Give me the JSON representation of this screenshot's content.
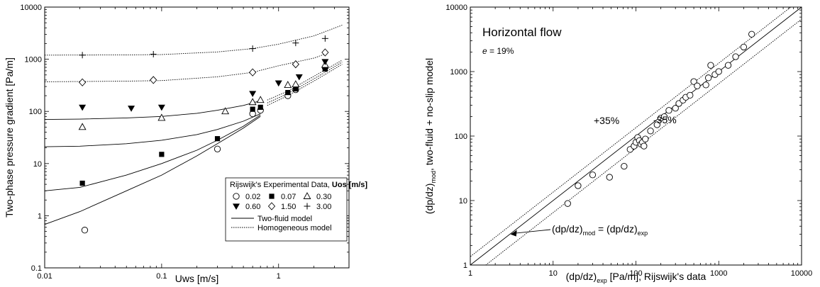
{
  "chart_data": [
    {
      "type": "scatter",
      "xscale": "log",
      "yscale": "log",
      "xlim": [
        0.01,
        4
      ],
      "ylim": [
        0.1,
        10000
      ],
      "xlabel": "Uws [m/s]",
      "ylabel": "Two-phase pressure gradient [Pa/m]",
      "xticks": [
        {
          "v": 0.01,
          "label": "0.01"
        },
        {
          "v": 0.1,
          "label": "0.1"
        },
        {
          "v": 1,
          "label": "1"
        }
      ],
      "yticks": [
        {
          "v": 0.1,
          "label": "0.1"
        },
        {
          "v": 1,
          "label": "1"
        },
        {
          "v": 10,
          "label": "10"
        },
        {
          "v": 100,
          "label": "100"
        },
        {
          "v": 1000,
          "label": "1000"
        },
        {
          "v": 10000,
          "label": "10000"
        }
      ],
      "legend": {
        "title": "Rijswijk's Experimental Data,",
        "title_bold": "Uos [m/s]",
        "position": "bottom-right",
        "line_entries": [
          {
            "label": "Two-fluid model",
            "style": "solid"
          },
          {
            "label": "Homogeneous model",
            "style": "dotted"
          }
        ]
      },
      "series": [
        {
          "name": "0.02",
          "marker": "open-circle",
          "points": [
            [
              0.022,
              0.53
            ],
            [
              0.3,
              19
            ],
            [
              0.6,
              90
            ],
            [
              0.7,
              105
            ],
            [
              1.2,
              200
            ],
            [
              1.4,
              260
            ],
            [
              2.5,
              700
            ]
          ]
        },
        {
          "name": "0.07",
          "marker": "filled-square",
          "points": [
            [
              0.021,
              4.2
            ],
            [
              0.1,
              15
            ],
            [
              0.3,
              30
            ],
            [
              0.6,
              110
            ],
            [
              0.7,
              120
            ],
            [
              1.2,
              230
            ],
            [
              1.4,
              270
            ],
            [
              2.5,
              650
            ]
          ]
        },
        {
          "name": "0.30",
          "marker": "open-triangle",
          "points": [
            [
              0.021,
              50
            ],
            [
              0.1,
              75
            ],
            [
              0.35,
              100
            ],
            [
              0.6,
              150
            ],
            [
              0.7,
              165
            ],
            [
              1.2,
              320
            ],
            [
              1.4,
              330
            ],
            [
              2.5,
              780
            ]
          ]
        },
        {
          "name": "0.60",
          "marker": "filled-triangle-down",
          "points": [
            [
              0.021,
              120
            ],
            [
              0.055,
              115
            ],
            [
              0.1,
              120
            ],
            [
              0.6,
              220
            ],
            [
              1.0,
              350
            ],
            [
              1.5,
              460
            ],
            [
              2.5,
              900
            ]
          ]
        },
        {
          "name": "1.50",
          "marker": "open-diamond",
          "points": [
            [
              0.021,
              360
            ],
            [
              0.085,
              400
            ],
            [
              0.6,
              560
            ],
            [
              1.4,
              800
            ],
            [
              2.5,
              1350
            ]
          ]
        },
        {
          "name": "3.00",
          "marker": "plus",
          "points": [
            [
              0.021,
              1200
            ],
            [
              0.085,
              1250
            ],
            [
              0.6,
              1600
            ],
            [
              1.4,
              2050
            ],
            [
              2.5,
              2500
            ]
          ]
        }
      ],
      "model_curves": [
        {
          "model": "Two-fluid",
          "style": "solid",
          "points": [
            [
              0.01,
              0.68
            ],
            [
              0.02,
              1.2
            ],
            [
              0.05,
              3
            ],
            [
              0.1,
              6
            ],
            [
              0.2,
              14
            ],
            [
              0.3,
              24
            ],
            [
              0.5,
              48
            ],
            [
              0.7,
              80
            ]
          ]
        },
        {
          "model": "Two-fluid",
          "style": "solid",
          "points": [
            [
              0.01,
              3.0
            ],
            [
              0.02,
              3.5
            ],
            [
              0.05,
              6
            ],
            [
              0.1,
              10
            ],
            [
              0.2,
              18
            ],
            [
              0.3,
              28
            ],
            [
              0.5,
              52
            ],
            [
              0.7,
              85
            ]
          ]
        },
        {
          "model": "Two-fluid",
          "style": "solid",
          "points": [
            [
              0.01,
              21
            ],
            [
              0.02,
              21.5
            ],
            [
              0.05,
              24
            ],
            [
              0.1,
              28
            ],
            [
              0.2,
              36
            ],
            [
              0.3,
              45
            ],
            [
              0.5,
              65
            ],
            [
              0.7,
              90
            ]
          ]
        },
        {
          "model": "Two-fluid",
          "style": "solid",
          "points": [
            [
              0.01,
              70
            ],
            [
              0.02,
              71
            ],
            [
              0.05,
              75
            ],
            [
              0.1,
              80
            ],
            [
              0.2,
              92
            ],
            [
              0.3,
              105
            ],
            [
              0.5,
              130
            ],
            [
              0.7,
              160
            ]
          ]
        },
        {
          "model": "Homogeneous",
          "style": "dotted",
          "points": [
            [
              0.8,
              130
            ],
            [
              1.2,
              200
            ],
            [
              2,
              380
            ],
            [
              3.5,
              800
            ]
          ]
        },
        {
          "model": "Homogeneous",
          "style": "dotted",
          "points": [
            [
              0.8,
              145
            ],
            [
              1.2,
              220
            ],
            [
              2,
              420
            ],
            [
              3.5,
              880
            ]
          ]
        },
        {
          "model": "Homogeneous",
          "style": "dotted",
          "points": [
            [
              0.8,
              165
            ],
            [
              1.2,
              245
            ],
            [
              2,
              470
            ],
            [
              3.5,
              960
            ]
          ]
        },
        {
          "model": "Homogeneous",
          "style": "dotted",
          "points": [
            [
              0.01,
              370
            ],
            [
              0.05,
              380
            ],
            [
              0.1,
              390
            ],
            [
              0.3,
              460
            ],
            [
              0.6,
              560
            ],
            [
              1,
              750
            ],
            [
              2,
              1050
            ],
            [
              2.6,
              1300
            ]
          ]
        },
        {
          "model": "Homogeneous",
          "style": "dotted",
          "points": [
            [
              0.01,
              1200
            ],
            [
              0.05,
              1210
            ],
            [
              0.1,
              1230
            ],
            [
              0.3,
              1380
            ],
            [
              0.6,
              1600
            ],
            [
              1,
              1950
            ],
            [
              2,
              2800
            ],
            [
              3.5,
              4500
            ]
          ]
        }
      ]
    },
    {
      "type": "scatter",
      "xscale": "log",
      "yscale": "log",
      "xlim": [
        1,
        10000
      ],
      "ylim": [
        1,
        10000
      ],
      "xlabel": {
        "main": "(dp/dz)",
        "sub": "exp",
        "rest": " [Pa/m], Rijswijk's data"
      },
      "ylabel": {
        "main": "(dp/dz)",
        "sub": "mod",
        "rest": ", two-fluid + no-slip model"
      },
      "xticks": [
        {
          "v": 1,
          "label": "1"
        },
        {
          "v": 10,
          "label": "10"
        },
        {
          "v": 100,
          "label": "100"
        },
        {
          "v": 1000,
          "label": "1000"
        },
        {
          "v": 10000,
          "label": "10000"
        }
      ],
      "yticks": [
        {
          "v": 1,
          "label": "1"
        },
        {
          "v": 10,
          "label": "10"
        },
        {
          "v": 100,
          "label": "100"
        },
        {
          "v": 1000,
          "label": "1000"
        },
        {
          "v": 10000,
          "label": "10000"
        }
      ],
      "annotations": {
        "title": "Horizontal flow",
        "error_sym": "e",
        "error_rest": " = 19%",
        "upper_band": "+35%",
        "lower_band": "-35%",
        "parity_main1": "(dp/dz)",
        "parity_sub1": "mod",
        "parity_mid": " = (dp/dz)",
        "parity_sub2": "exp"
      },
      "lines": [
        {
          "name": "y = x",
          "style": "solid",
          "factor": 1.0
        },
        {
          "name": "+35%",
          "style": "dotted",
          "factor": 1.35
        },
        {
          "name": "-35%",
          "style": "dotted",
          "factor": 0.65
        }
      ],
      "points": [
        [
          15,
          9
        ],
        [
          20,
          17
        ],
        [
          30,
          25
        ],
        [
          48,
          23
        ],
        [
          72,
          34
        ],
        [
          85,
          62
        ],
        [
          95,
          70
        ],
        [
          100,
          80
        ],
        [
          105,
          95
        ],
        [
          110,
          85
        ],
        [
          115,
          75
        ],
        [
          120,
          80
        ],
        [
          125,
          70
        ],
        [
          130,
          90
        ],
        [
          150,
          120
        ],
        [
          180,
          150
        ],
        [
          200,
          190
        ],
        [
          220,
          200
        ],
        [
          250,
          250
        ],
        [
          300,
          270
        ],
        [
          330,
          320
        ],
        [
          370,
          360
        ],
        [
          400,
          400
        ],
        [
          450,
          430
        ],
        [
          500,
          700
        ],
        [
          550,
          600
        ],
        [
          700,
          620
        ],
        [
          750,
          800
        ],
        [
          800,
          1250
        ],
        [
          900,
          900
        ],
        [
          1000,
          1000
        ],
        [
          1300,
          1250
        ],
        [
          1600,
          1700
        ],
        [
          2000,
          2400
        ],
        [
          2500,
          3800
        ]
      ]
    }
  ]
}
